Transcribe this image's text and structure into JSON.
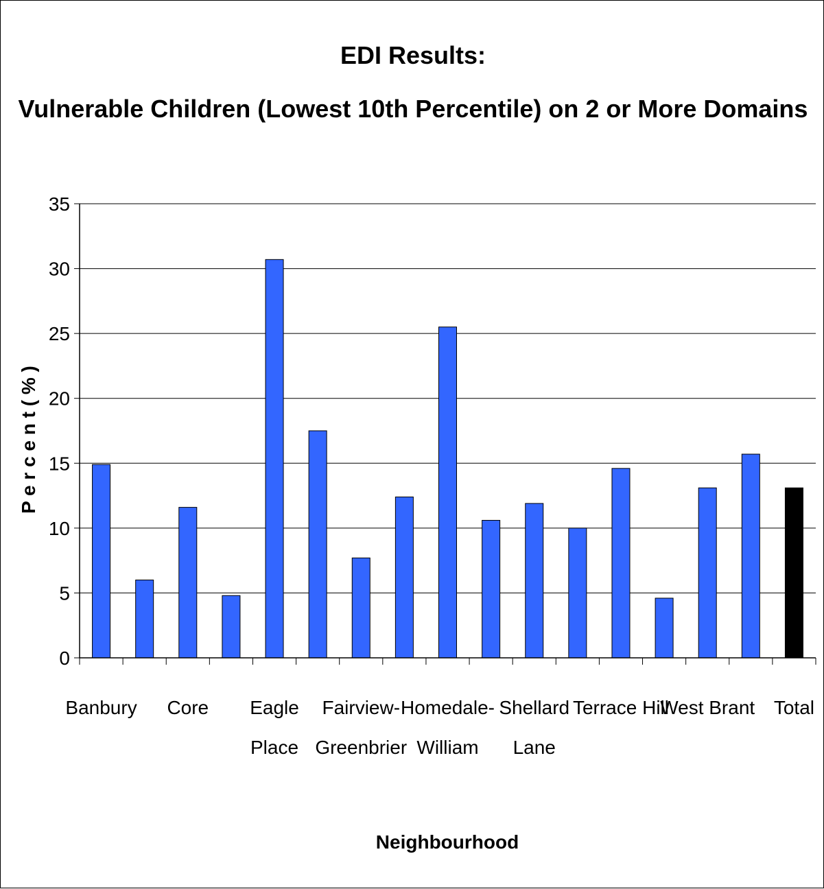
{
  "chart_data": {
    "type": "bar",
    "title": "EDI Results:",
    "subtitle": "Vulnerable Children (Lowest 10th Percentile) on 2 or More Domains",
    "xlabel": "Neighbourhood",
    "ylabel": "P e r c e n t  ( % )",
    "ylim": [
      0,
      35
    ],
    "yticks": [
      0,
      5,
      10,
      15,
      20,
      25,
      30,
      35
    ],
    "grid": true,
    "categories": [
      "Banbury",
      "",
      "Core",
      "",
      "Eagle Place",
      "",
      "Fairview-Greenbrier",
      "",
      "Homedale-William",
      "",
      "Shellard Lane",
      "",
      "Terrace Hill",
      "",
      "West Brant",
      "",
      "Total"
    ],
    "x_tick_labels": [
      {
        "index": 0,
        "lines": [
          "Banbury"
        ]
      },
      {
        "index": 2,
        "lines": [
          "Core"
        ]
      },
      {
        "index": 4,
        "lines": [
          "Eagle",
          "Place"
        ]
      },
      {
        "index": 6,
        "lines": [
          "Fairview-",
          "Greenbrier"
        ]
      },
      {
        "index": 8,
        "lines": [
          "Homedale-",
          "William"
        ]
      },
      {
        "index": 10,
        "lines": [
          "Shellard",
          "Lane"
        ]
      },
      {
        "index": 12,
        "lines": [
          "Terrace Hill"
        ]
      },
      {
        "index": 14,
        "lines": [
          "West Brant"
        ]
      },
      {
        "index": 16,
        "lines": [
          "Total"
        ]
      }
    ],
    "values": [
      14.9,
      6.0,
      11.6,
      4.8,
      30.7,
      17.5,
      7.7,
      12.4,
      25.5,
      10.6,
      11.9,
      10.0,
      14.6,
      4.6,
      13.1,
      15.7,
      13.1
    ],
    "bar_colors": {
      "default": "#3366FF",
      "total": "#000000"
    }
  }
}
